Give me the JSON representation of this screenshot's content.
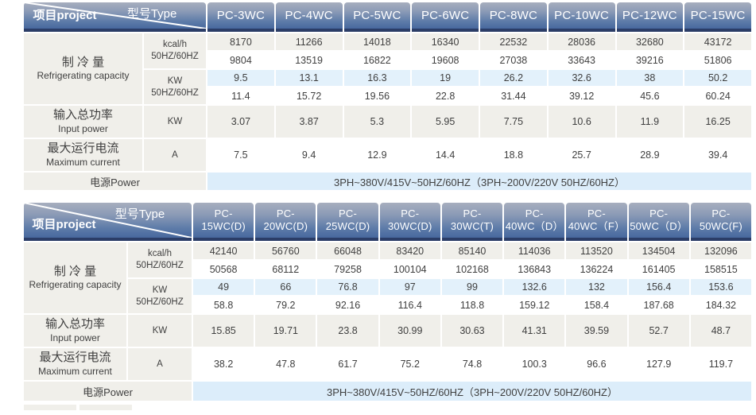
{
  "colors": {
    "header_gradient_top": "#a7aebe",
    "header_gradient_bottom": "#47689e",
    "header_dark_strip": "#2b3d67",
    "row_gray": "#f0efea",
    "row_blue": "#e3f1fb",
    "power_row_blue": "#dcedfa",
    "text": "#3f3f3f",
    "header_text": "#ffffff"
  },
  "corner": {
    "type_label": "型号Type",
    "project_label": "项目project"
  },
  "row_labels": {
    "capacity_zh": "制 冷 量",
    "capacity_en": "Refrigerating capacity",
    "kcal_unit_line1": "kcal/h",
    "kcal_unit_line2": "50HZ/60HZ",
    "kw_unit_line1": "KW",
    "kw_unit_line2": "50HZ/60HZ",
    "input_power_zh": "输入总功率",
    "input_power_en": "Input power",
    "input_power_unit": "KW",
    "max_current_zh": "最大运行电流",
    "max_current_en": "Maximum current",
    "max_current_unit": "A",
    "power_label": "电源Power",
    "power_value": "3PH~380V/415V~50HZ/60HZ（3PH~200V/220V 50HZ/60HZ）"
  },
  "tables": [
    {
      "models": [
        "PC-3WC",
        "PC-4WC",
        "PC-5WC",
        "PC-6WC",
        "PC-8WC",
        "PC-10WC",
        "PC-12WC",
        "PC-15WC"
      ],
      "kcal_50hz": [
        "8170",
        "11266",
        "14018",
        "16340",
        "22532",
        "28036",
        "32680",
        "43172"
      ],
      "kcal_60hz": [
        "9804",
        "13519",
        "16822",
        "19608",
        "27038",
        "33643",
        "39216",
        "51806"
      ],
      "kw_50hz": [
        "9.5",
        "13.1",
        "16.3",
        "19",
        "26.2",
        "32.6",
        "38",
        "50.2"
      ],
      "kw_60hz": [
        "11.4",
        "15.72",
        "19.56",
        "22.8",
        "31.44",
        "39.12",
        "45.6",
        "60.24"
      ],
      "input_power_kw": [
        "3.07",
        "3.87",
        "5.3",
        "5.95",
        "7.75",
        "10.6",
        "11.9",
        "16.25"
      ],
      "max_current_a": [
        "7.5",
        "9.4",
        "12.9",
        "14.4",
        "18.8",
        "25.7",
        "28.9",
        "39.4"
      ]
    },
    {
      "models": [
        "PC-15WC(D)",
        "PC-20WC(D)",
        "PC-25WC(D)",
        "PC-30WC(D)",
        "PC-30WC(T)",
        "PC-40WC（D）",
        "PC-40WC（F）",
        "PC-50WC（D）",
        "PC-50WC(F)"
      ],
      "kcal_50hz": [
        "42140",
        "56760",
        "66048",
        "83420",
        "85140",
        "114036",
        "113520",
        "134504",
        "132096"
      ],
      "kcal_60hz": [
        "50568",
        "68112",
        "79258",
        "100104",
        "102168",
        "136843",
        "136224",
        "161405",
        "158515"
      ],
      "kw_50hz": [
        "49",
        "66",
        "76.8",
        "97",
        "99",
        "132.6",
        "132",
        "156.4",
        "153.6"
      ],
      "kw_60hz": [
        "58.8",
        "79.2",
        "92.16",
        "116.4",
        "118.8",
        "159.12",
        "158.4",
        "187.68",
        "184.32"
      ],
      "input_power_kw": [
        "15.85",
        "19.71",
        "23.8",
        "30.99",
        "30.63",
        "41.31",
        "39.59",
        "52.7",
        "48.7"
      ],
      "max_current_a": [
        "38.2",
        "47.8",
        "61.7",
        "75.2",
        "74.8",
        "100.3",
        "96.6",
        "127.9",
        "119.7"
      ]
    }
  ]
}
